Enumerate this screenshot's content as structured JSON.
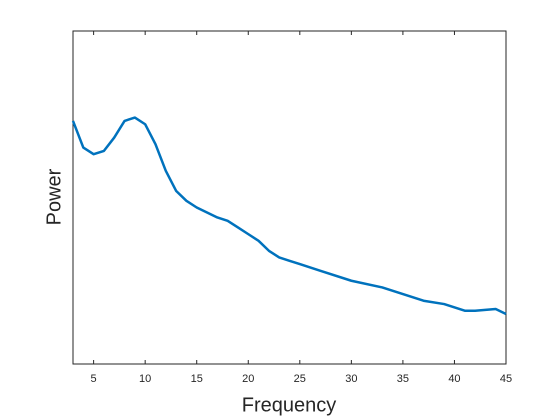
{
  "chart_data": {
    "type": "line",
    "x_label": "Frequency",
    "y_label": "Power",
    "x": [
      3,
      4,
      5,
      6,
      7,
      8,
      9,
      10,
      11,
      12,
      13,
      14,
      15,
      16,
      17,
      18,
      19,
      20,
      21,
      22,
      23,
      24,
      25,
      27,
      30,
      33,
      35,
      37,
      39,
      41,
      42,
      44,
      45
    ],
    "series": [
      {
        "color": "#0072bd",
        "values": [
          0.73,
          0.65,
          0.63,
          0.64,
          0.68,
          0.73,
          0.74,
          0.72,
          0.66,
          0.58,
          0.52,
          0.49,
          0.47,
          0.455,
          0.44,
          0.43,
          0.41,
          0.39,
          0.37,
          0.34,
          0.32,
          0.31,
          0.3,
          0.28,
          0.25,
          0.23,
          0.21,
          0.19,
          0.18,
          0.16,
          0.16,
          0.165,
          0.15
        ]
      }
    ],
    "xlim": [
      3,
      45
    ],
    "xticks": [
      5,
      10,
      15,
      20,
      25,
      30,
      35,
      40,
      45
    ],
    "ylim": [
      0,
      1
    ]
  }
}
